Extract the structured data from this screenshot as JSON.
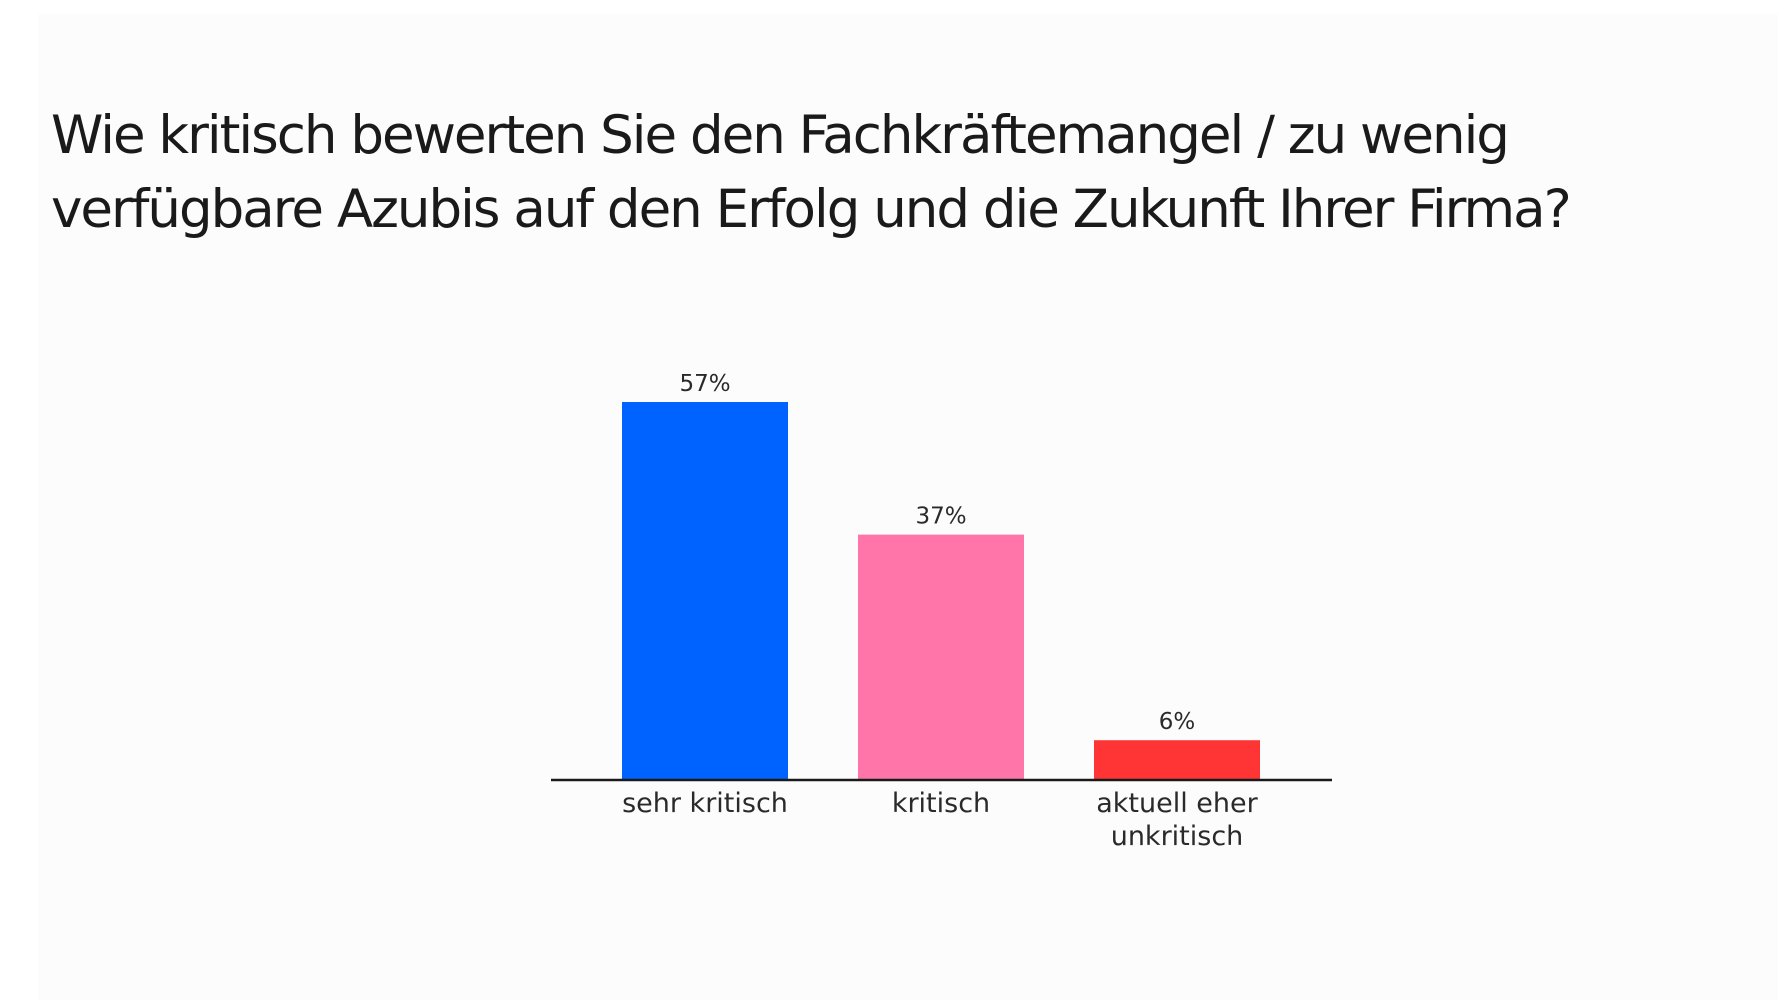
{
  "question": "Wie kritisch bewerten Sie den Fachkräftemangel / zu wenig verfügbare Azubis auf den Erfolg und die Zukunft Ihrer Firma?",
  "chart_data": {
    "type": "bar",
    "title": "Wie kritisch bewerten Sie den Fachkräftemangel / zu wenig verfügbare Azubis auf den Erfolg und die Zukunft Ihrer Firma?",
    "categories": [
      [
        "sehr kritisch"
      ],
      [
        "kritisch"
      ],
      [
        "aktuell eher",
        "unkritisch"
      ]
    ],
    "values": [
      57,
      37,
      6
    ],
    "value_labels": [
      "57%",
      "37%",
      "6%"
    ],
    "colors": [
      "#0062ff",
      "#ff75a9",
      "#ff3535"
    ],
    "unit": "%",
    "ylim": [
      0,
      57
    ],
    "grid": false,
    "legend": "none",
    "axis_color": "#1a1a1a"
  }
}
